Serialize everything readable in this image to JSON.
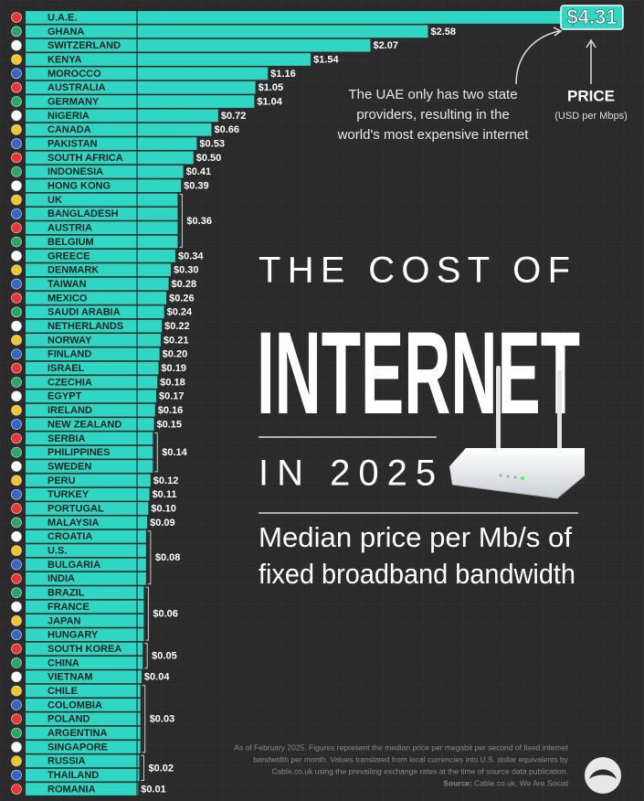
{
  "chart_data": {
    "type": "bar",
    "orientation": "horizontal",
    "title": [
      "THE COST OF",
      "INTERNET",
      "IN 2025"
    ],
    "subtitle": [
      "Median price per Mb/s of",
      "fixed broadband bandwidth"
    ],
    "annotation": [
      "The UAE only has two state",
      "providers, resulting in the",
      "world's most expensive internet"
    ],
    "value_axis_label": "PRICE",
    "value_axis_unit": "(USD per Mbps)",
    "footnote": [
      "As of February 2025. Figures represent the median price per megabit per second of fixed internet",
      "bandwidth per month. Values translated from local currencies into U.S. dollar equivalents by",
      "Cable.co.uk using the prevailing exchange rates at the time of source data publication."
    ],
    "source_label": "Source:",
    "source": "Cable.co.uk, We Are Social",
    "color": "#2fd6c3",
    "categories": [
      "U.A.E.",
      "GHANA",
      "SWITZERLAND",
      "KENYA",
      "MOROCCO",
      "AUSTRALIA",
      "GERMANY",
      "NIGERIA",
      "CANADA",
      "PAKISTAN",
      "SOUTH AFRICA",
      "INDONESIA",
      "HONG KONG",
      "UK",
      "BANGLADESH",
      "AUSTRIA",
      "BELGIUM",
      "GREECE",
      "DENMARK",
      "TAIWAN",
      "MEXICO",
      "SAUDI ARABIA",
      "NETHERLANDS",
      "NORWAY",
      "FINLAND",
      "ISRAEL",
      "CZECHIA",
      "EGYPT",
      "IRELAND",
      "NEW ZEALAND",
      "SERBIA",
      "PHILIPPINES",
      "SWEDEN",
      "PERU",
      "TURKEY",
      "PORTUGAL",
      "MALAYSIA",
      "CROATIA",
      "U.S.",
      "BULGARIA",
      "INDIA",
      "BRAZIL",
      "FRANCE",
      "JAPAN",
      "HUNGARY",
      "SOUTH KOREA",
      "CHINA",
      "VIETNAM",
      "CHILE",
      "COLOMBIA",
      "POLAND",
      "ARGENTINA",
      "SINGAPORE",
      "RUSSIA",
      "THAILAND",
      "ROMANIA"
    ],
    "values": [
      4.31,
      2.58,
      2.07,
      1.54,
      1.16,
      1.05,
      1.04,
      0.72,
      0.66,
      0.53,
      0.5,
      0.41,
      0.39,
      0.36,
      0.36,
      0.36,
      0.36,
      0.34,
      0.3,
      0.28,
      0.26,
      0.24,
      0.22,
      0.21,
      0.2,
      0.19,
      0.18,
      0.17,
      0.16,
      0.15,
      0.14,
      0.14,
      0.14,
      0.12,
      0.11,
      0.1,
      0.09,
      0.08,
      0.08,
      0.08,
      0.08,
      0.06,
      0.06,
      0.06,
      0.06,
      0.05,
      0.05,
      0.04,
      0.03,
      0.03,
      0.03,
      0.03,
      0.03,
      0.02,
      0.02,
      0.01
    ],
    "value_labels": [
      "$4.31",
      "$2.58",
      "$2.07",
      "$1.54",
      "$1.16",
      "$1.05",
      "$1.04",
      "$0.72",
      "$0.66",
      "$0.53",
      "$0.50",
      "$0.41",
      "$0.39",
      "$0.36",
      null,
      null,
      null,
      "$0.34",
      "$0.30",
      "$0.28",
      "$0.26",
      "$0.24",
      "$0.22",
      "$0.21",
      "$0.20",
      "$0.19",
      "$0.18",
      "$0.17",
      "$0.16",
      "$0.15",
      "$0.14",
      null,
      null,
      "$0.12",
      "$0.11",
      "$0.10",
      "$0.09",
      "$0.08",
      null,
      null,
      null,
      "$0.06",
      null,
      null,
      null,
      "$0.05",
      null,
      "$0.04",
      "$0.03",
      null,
      null,
      null,
      null,
      "$0.02",
      null,
      "$0.01"
    ]
  }
}
